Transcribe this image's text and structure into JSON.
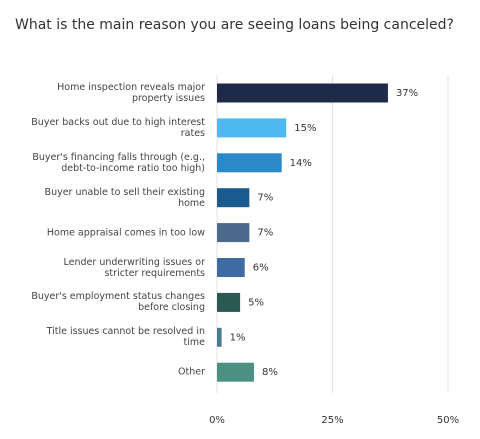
{
  "chart_data": {
    "type": "bar",
    "orientation": "horizontal",
    "title": "What is the main reason you are seeing loans being canceled?",
    "categories": [
      "Home inspection reveals major property issues",
      "Buyer backs out due to high interest rates",
      "Buyer's financing falls through (e.g., debt-to-income ratio too high)",
      "Buyer unable to sell their existing home",
      "Home appraisal comes in too low",
      "Lender underwriting issues or stricter requirements",
      "Buyer's employment status changes before closing",
      "Title issues cannot be resolved in time",
      "Other"
    ],
    "values": [
      37,
      15,
      14,
      7,
      7,
      6,
      5,
      1,
      8
    ],
    "value_labels": [
      "37%",
      "15%",
      "14%",
      "7%",
      "7%",
      "6%",
      "5%",
      "1%",
      "8%"
    ],
    "colors": [
      "#1f2a48",
      "#4fb8f0",
      "#2a8ac9",
      "#1b5a8c",
      "#4b6a8b",
      "#3e6ba1",
      "#29594f",
      "#4b7b91",
      "#4b9182"
    ],
    "xlim": [
      0,
      50
    ],
    "xticks": [
      {
        "value": 0,
        "label": "0%"
      },
      {
        "value": 25,
        "label": "25%"
      },
      {
        "value": 50,
        "label": "50%"
      }
    ],
    "grid": true
  }
}
